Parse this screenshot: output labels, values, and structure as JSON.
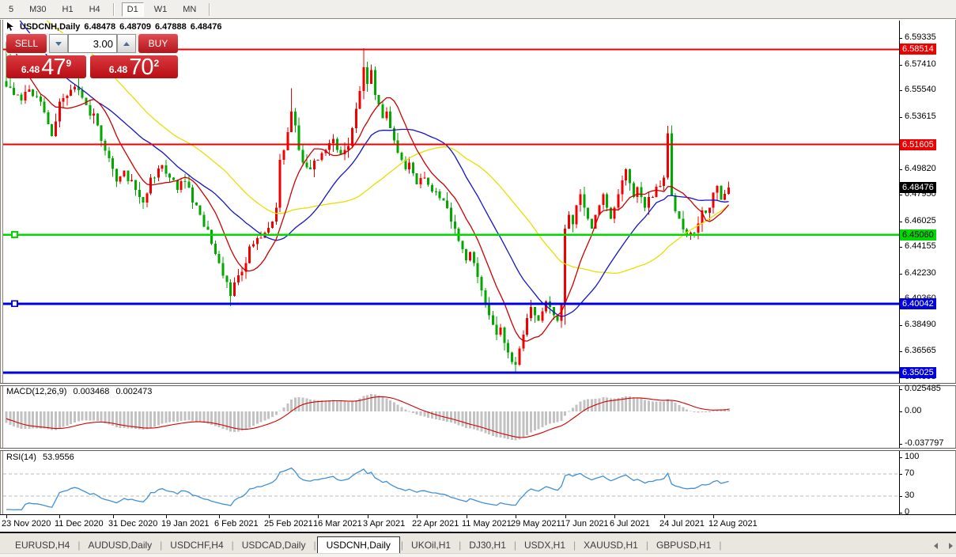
{
  "toolbar": {
    "timeframes": [
      {
        "label": "5",
        "active": false,
        "sep_after": false
      },
      {
        "label": "M30",
        "active": false,
        "sep_after": false
      },
      {
        "label": "H1",
        "active": false,
        "sep_after": false
      },
      {
        "label": "H4",
        "active": false,
        "sep_after": true
      },
      {
        "label": "D1",
        "active": true,
        "sep_after": false
      },
      {
        "label": "W1",
        "active": false,
        "sep_after": false
      },
      {
        "label": "MN",
        "active": false,
        "sep_after": true
      }
    ]
  },
  "header": {
    "symbol": "USDCNH,Daily",
    "open": "6.48478",
    "high": "6.48709",
    "low": "6.47888",
    "close": "6.48476"
  },
  "trade_panel": {
    "sell_label": "SELL",
    "buy_label": "BUY",
    "volume": "3.00",
    "sell_price": {
      "small": "6.48",
      "big": "47",
      "sup": "9"
    },
    "buy_price": {
      "small": "6.48",
      "big": "70",
      "sup": "2"
    }
  },
  "colors": {
    "bull": "#f20000",
    "bear": "#00a800",
    "ma_fast": "#cc0000",
    "ma_mid": "#1414c8",
    "ma_slow": "#e8df00",
    "macd_hist": "#c2c2c2",
    "macd_signal": "#d40000",
    "rsi_line": "#3f8fd6",
    "level_red": "#ee0000",
    "level_green": "#00d800",
    "level_blue": "#0000dc"
  },
  "price_axis": {
    "ticks": [
      "6.59335",
      "6.57410",
      "6.55540",
      "6.53615",
      "6.49820",
      "6.47950",
      "6.46025",
      "6.44155",
      "6.42230",
      "6.40360",
      "6.38490",
      "6.36565",
      "6.34695"
    ],
    "levels": [
      {
        "price": "6.58514",
        "value": 6.58514,
        "color": "#ee0000",
        "text_color": "#ffffff",
        "width": 2,
        "handle": false
      },
      {
        "price": "6.51605",
        "value": 6.51605,
        "color": "#ee0000",
        "text_color": "#ffffff",
        "width": 2,
        "handle": false
      },
      {
        "price": "6.45060",
        "value": 6.4506,
        "color": "#00d800",
        "text_color": "#000000",
        "width": 2.5,
        "handle": true
      },
      {
        "price": "6.40042",
        "value": 6.40042,
        "color": "#0000dc",
        "text_color": "#ffffff",
        "width": 3,
        "handle": true
      },
      {
        "price": "6.35025",
        "value": 6.35025,
        "color": "#0000dc",
        "text_color": "#ffffff",
        "width": 3,
        "handle": false
      }
    ],
    "current": {
      "price": "6.48476",
      "value": 6.48476,
      "bg": "#000000",
      "text": "#ffffff"
    }
  },
  "indicators": {
    "macd": {
      "label_name": "MACD(12,26,9)",
      "value1": "0.003468",
      "value2": "0.002473",
      "axis": [
        {
          "text": "0.025485",
          "value": 0.025485
        },
        {
          "text": "0.00",
          "value": 0
        },
        {
          "text": "-0.037797",
          "value": -0.037797
        }
      ]
    },
    "rsi": {
      "label_name": "RSI(14)",
      "value": "53.9556",
      "axis": [
        {
          "text": "100",
          "value": 100
        },
        {
          "text": "70",
          "value": 70
        },
        {
          "text": "30",
          "value": 30
        },
        {
          "text": "0",
          "value": 0
        }
      ],
      "dashed_levels": [
        70,
        30
      ]
    }
  },
  "date_axis": [
    {
      "label": "23 Nov 2020",
      "d": 0
    },
    {
      "label": "11 Dec 2020",
      "d": 14
    },
    {
      "label": "31 Dec 2020",
      "d": 28
    },
    {
      "label": "19 Jan 2021",
      "d": 42
    },
    {
      "label": "6 Feb 2021",
      "d": 56
    },
    {
      "label": "25 Feb 2021",
      "d": 69
    },
    {
      "label": "16 Mar 2021",
      "d": 82
    },
    {
      "label": "3 Apr 2021",
      "d": 95
    },
    {
      "label": "22 Apr 2021",
      "d": 108
    },
    {
      "label": "11 May 2021",
      "d": 121
    },
    {
      "label": "29 May 2021",
      "d": 134
    },
    {
      "label": "17 Jun 2021",
      "d": 147
    },
    {
      "label": "6 Jul 2021",
      "d": 160
    },
    {
      "label": "24 Jul 2021",
      "d": 173
    },
    {
      "label": "12 Aug 2021",
      "d": 186
    }
  ],
  "tabs": [
    {
      "label": "EURUSD,H4",
      "active": false
    },
    {
      "label": "AUDUSD,Daily",
      "active": false
    },
    {
      "label": "USDCHF,H4",
      "active": false
    },
    {
      "label": "USDCAD,Daily",
      "active": false
    },
    {
      "label": "USDCNH,Daily",
      "active": true
    },
    {
      "label": "UKOil,H1",
      "active": false
    },
    {
      "label": "DJ30,H1",
      "active": false
    },
    {
      "label": "USDX,H1",
      "active": false
    },
    {
      "label": "XAUUSD,H1",
      "active": false
    },
    {
      "label": "GBPUSD,H1",
      "active": false
    }
  ],
  "chart_data": {
    "type": "candlestick",
    "symbol": "USDCNH",
    "timeframe": "Daily",
    "bars": 191,
    "price_range_visible": [
      6.343,
      6.6
    ],
    "ohlc_header": {
      "open": 6.48478,
      "high": 6.48709,
      "low": 6.47888,
      "close": 6.48476
    },
    "current_price": 6.48476,
    "horizontal_levels": [
      6.58514,
      6.51605,
      6.4506,
      6.40042,
      6.35025
    ],
    "waypoints": [
      [
        0,
        6.558
      ],
      [
        2,
        6.552
      ],
      [
        4,
        6.548
      ],
      [
        6,
        6.556
      ],
      [
        9,
        6.547
      ],
      [
        12,
        6.522
      ],
      [
        14,
        6.547
      ],
      [
        18,
        6.558
      ],
      [
        20,
        6.55
      ],
      [
        24,
        6.53
      ],
      [
        27,
        6.506
      ],
      [
        29,
        6.489
      ],
      [
        31,
        6.497
      ],
      [
        34,
        6.483
      ],
      [
        36,
        6.474
      ],
      [
        38,
        6.492
      ],
      [
        41,
        6.501
      ],
      [
        43,
        6.492
      ],
      [
        45,
        6.483
      ],
      [
        47,
        6.489
      ],
      [
        49,
        6.474
      ],
      [
        51,
        6.465
      ],
      [
        53,
        6.454
      ],
      [
        54,
        6.444
      ],
      [
        56,
        6.43
      ],
      [
        58,
        6.416
      ],
      [
        59,
        6.406
      ],
      [
        61,
        6.421
      ],
      [
        63,
        6.43
      ],
      [
        64,
        6.442
      ],
      [
        66,
        6.448
      ],
      [
        68,
        6.452
      ],
      [
        70,
        6.46
      ],
      [
        71,
        6.47
      ],
      [
        72,
        6.505
      ],
      [
        74,
        6.525
      ],
      [
        75,
        6.54
      ],
      [
        76,
        6.53
      ],
      [
        77,
        6.512
      ],
      [
        78,
        6.503
      ],
      [
        80,
        6.498
      ],
      [
        82,
        6.505
      ],
      [
        84,
        6.512
      ],
      [
        86,
        6.52
      ],
      [
        88,
        6.509
      ],
      [
        90,
        6.515
      ],
      [
        91,
        6.528
      ],
      [
        92,
        6.542
      ],
      [
        93,
        6.555
      ],
      [
        94,
        6.572
      ],
      [
        95,
        6.56
      ],
      [
        96,
        6.57
      ],
      [
        97,
        6.552
      ],
      [
        98,
        6.545
      ],
      [
        99,
        6.535
      ],
      [
        100,
        6.54
      ],
      [
        101,
        6.528
      ],
      [
        102,
        6.519
      ],
      [
        103,
        6.51
      ],
      [
        104,
        6.505
      ],
      [
        105,
        6.498
      ],
      [
        106,
        6.503
      ],
      [
        107,
        6.495
      ],
      [
        108,
        6.487
      ],
      [
        110,
        6.492
      ],
      [
        112,
        6.482
      ],
      [
        114,
        6.477
      ],
      [
        116,
        6.47
      ],
      [
        117,
        6.46
      ],
      [
        118,
        6.455
      ],
      [
        119,
        6.446
      ],
      [
        120,
        6.44
      ],
      [
        121,
        6.432
      ],
      [
        122,
        6.438
      ],
      [
        123,
        6.43
      ],
      [
        124,
        6.42
      ],
      [
        125,
        6.41
      ],
      [
        126,
        6.4
      ],
      [
        127,
        6.392
      ],
      [
        128,
        6.385
      ],
      [
        129,
        6.378
      ],
      [
        130,
        6.383
      ],
      [
        131,
        6.372
      ],
      [
        132,
        6.365
      ],
      [
        133,
        6.358
      ],
      [
        134,
        6.356
      ],
      [
        135,
        6.368
      ],
      [
        136,
        6.378
      ],
      [
        137,
        6.39
      ],
      [
        138,
        6.398
      ],
      [
        139,
        6.392
      ],
      [
        140,
        6.388
      ],
      [
        141,
        6.395
      ],
      [
        142,
        6.402
      ],
      [
        143,
        6.398
      ],
      [
        144,
        6.392
      ],
      [
        145,
        6.388
      ],
      [
        146,
        6.4
      ],
      [
        147,
        6.455
      ],
      [
        148,
        6.465
      ],
      [
        149,
        6.458
      ],
      [
        150,
        6.472
      ],
      [
        151,
        6.48
      ],
      [
        152,
        6.47
      ],
      [
        153,
        6.462
      ],
      [
        154,
        6.455
      ],
      [
        155,
        6.465
      ],
      [
        156,
        6.472
      ],
      [
        157,
        6.48
      ],
      [
        158,
        6.47
      ],
      [
        159,
        6.462
      ],
      [
        160,
        6.47
      ],
      [
        161,
        6.48
      ],
      [
        162,
        6.49
      ],
      [
        163,
        6.498
      ],
      [
        164,
        6.488
      ],
      [
        165,
        6.478
      ],
      [
        166,
        6.485
      ],
      [
        167,
        6.478
      ],
      [
        168,
        6.47
      ],
      [
        169,
        6.478
      ],
      [
        170,
        6.478
      ],
      [
        172,
        6.486
      ],
      [
        173,
        6.492
      ],
      [
        174,
        6.524
      ],
      [
        175,
        6.479
      ],
      [
        177,
        6.462
      ],
      [
        179,
        6.45
      ],
      [
        181,
        6.452
      ],
      [
        183,
        6.468
      ],
      [
        185,
        6.47
      ],
      [
        187,
        6.486
      ],
      [
        188,
        6.476
      ],
      [
        190,
        6.48476
      ]
    ],
    "wick_overrides": [
      {
        "d": 0,
        "high": 6.592
      },
      {
        "d": 1,
        "high": 6.585
      },
      {
        "d": 59,
        "low": 6.3985
      },
      {
        "d": 75,
        "high": 6.557
      },
      {
        "d": 94,
        "high": 6.586
      },
      {
        "d": 134,
        "low": 6.3505
      },
      {
        "d": 147,
        "low": 6.385
      },
      {
        "d": 174,
        "high": 6.526
      },
      {
        "d": 175,
        "high": 6.53
      }
    ],
    "prehistory": {
      "days": 60,
      "segments": [
        [
          0,
          6.622
        ],
        [
          20,
          6.622
        ],
        [
          40,
          6.646
        ],
        [
          59,
          6.589
        ]
      ]
    },
    "moving_averages": [
      {
        "period": 45,
        "color": "#e8df00",
        "name": "ma-slow"
      },
      {
        "period": 25,
        "color": "#1414c8",
        "name": "ma-mid"
      },
      {
        "period": 10,
        "color": "#cc0000",
        "name": "ma-fast"
      }
    ],
    "indicators": {
      "macd": {
        "params": [
          12,
          26,
          9
        ],
        "value": 0.003468,
        "signal": 0.002473,
        "axis_max": 0.025485,
        "axis_min": -0.037797
      },
      "rsi": {
        "period": 14,
        "value": 53.9556,
        "overbought": 70,
        "oversold": 30
      }
    }
  }
}
